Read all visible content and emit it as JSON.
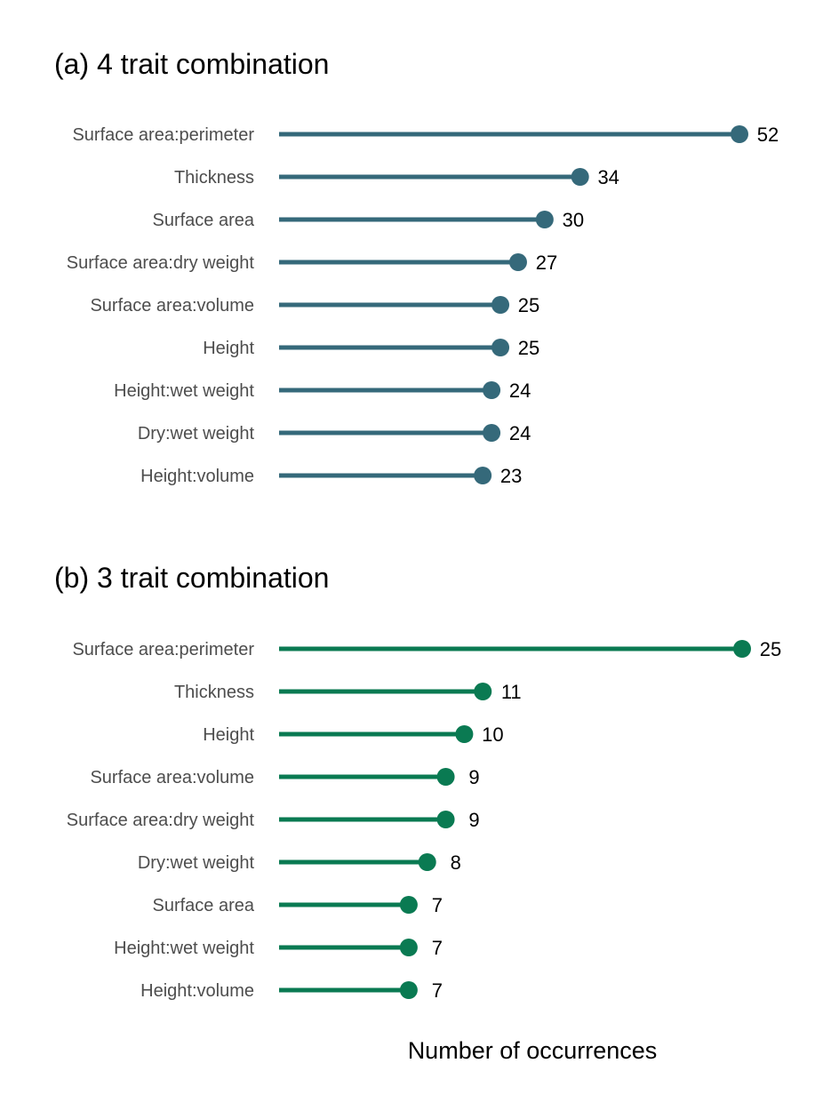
{
  "chart_data": [
    {
      "type": "lollipop",
      "title": "(a) 4 trait combination",
      "categories": [
        "Surface area:perimeter",
        "Thickness",
        "Surface area",
        "Surface area:dry weight",
        "Surface area:volume",
        "Height",
        "Height:wet weight",
        "Dry:wet weight",
        "Height:volume"
      ],
      "values": [
        52,
        34,
        30,
        27,
        25,
        25,
        24,
        24,
        23
      ],
      "color": "#35697a",
      "xlabel": "",
      "ylabel": "",
      "grid": false
    },
    {
      "type": "lollipop",
      "title": "(b) 3 trait combination",
      "categories": [
        "Surface area:perimeter",
        "Thickness",
        "Height",
        "Surface area:volume",
        "Surface area:dry weight",
        "Dry:wet weight",
        "Surface area",
        "Height:wet weight",
        "Height:volume"
      ],
      "values": [
        25,
        11,
        10,
        9,
        9,
        8,
        7,
        7,
        7
      ],
      "color": "#0a7a52",
      "xlabel": "Number of occurrences",
      "ylabel": "",
      "grid": false
    }
  ]
}
